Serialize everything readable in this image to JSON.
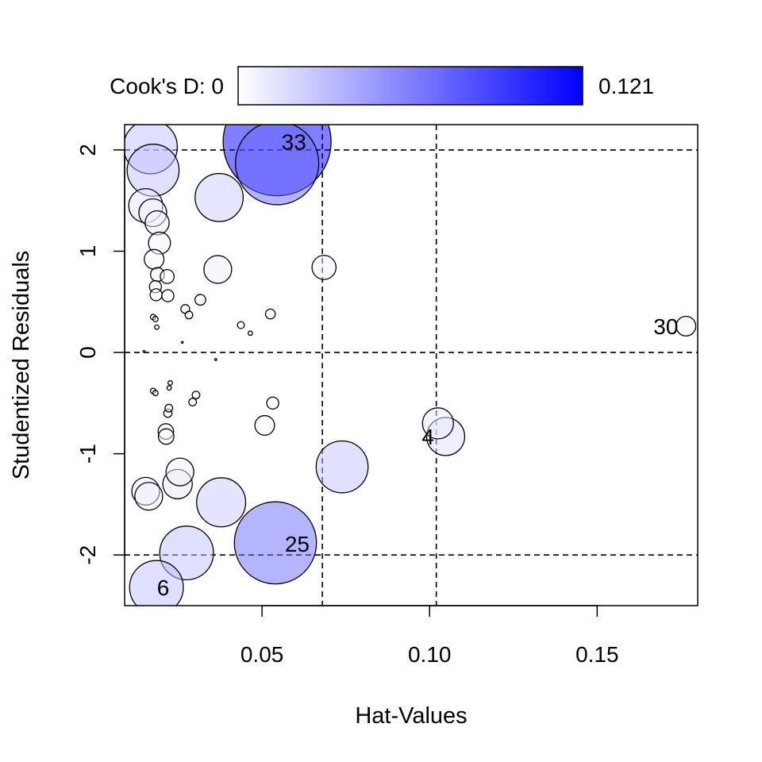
{
  "chart_data": {
    "type": "scatter",
    "subtype": "influence-bubble-plot",
    "xlabel": "Hat-Values",
    "ylabel": "Studentized Residuals",
    "xlim": [
      0.009,
      0.18
    ],
    "ylim": [
      -2.5,
      2.25
    ],
    "x_ticks": [
      0.05,
      0.1,
      0.15
    ],
    "x_tick_labels": [
      "0.05",
      "0.10",
      "0.15"
    ],
    "y_ticks": [
      -2,
      -1,
      0,
      1,
      2
    ],
    "y_tick_labels": [
      "-2",
      "-1",
      "0",
      "1",
      "2"
    ],
    "reference_lines": {
      "hat_values": [
        0.068,
        0.102
      ],
      "residuals": [
        -2,
        0,
        2
      ]
    },
    "legend": {
      "label": "Cook's D: 0",
      "max_label": "0.121",
      "min_value": 0,
      "max_value": 0.121,
      "color_low": "#ffffff",
      "color_high": "#0000ff",
      "position": "top"
    },
    "point_labels": [
      {
        "text": "33",
        "x": 0.0595,
        "y": 2.08
      },
      {
        "text": "30",
        "x": 0.1705,
        "y": 0.26
      },
      {
        "text": "4",
        "x": 0.0995,
        "y": -0.83
      },
      {
        "text": "25",
        "x": 0.0605,
        "y": -1.89
      },
      {
        "text": "6",
        "x": 0.0205,
        "y": -2.32
      }
    ],
    "points": [
      {
        "x": 0.0545,
        "y": 2.08,
        "d": 0.121
      },
      {
        "x": 0.0545,
        "y": 1.87,
        "d": 0.072
      },
      {
        "x": 0.0167,
        "y": 2.03,
        "d": 0.03
      },
      {
        "x": 0.0175,
        "y": 1.8,
        "d": 0.028
      },
      {
        "x": 0.0372,
        "y": 1.53,
        "d": 0.024
      },
      {
        "x": 0.0153,
        "y": 1.45,
        "d": 0.012
      },
      {
        "x": 0.0174,
        "y": 1.38,
        "d": 0.008
      },
      {
        "x": 0.0187,
        "y": 1.28,
        "d": 0.006
      },
      {
        "x": 0.0194,
        "y": 1.08,
        "d": 0.005
      },
      {
        "x": 0.0178,
        "y": 0.92,
        "d": 0.004
      },
      {
        "x": 0.0368,
        "y": 0.82,
        "d": 0.008
      },
      {
        "x": 0.0685,
        "y": 0.84,
        "d": 0.006
      },
      {
        "x": 0.0188,
        "y": 0.77,
        "d": 0.002
      },
      {
        "x": 0.0217,
        "y": 0.75,
        "d": 0.002
      },
      {
        "x": 0.0182,
        "y": 0.65,
        "d": 0.0015
      },
      {
        "x": 0.0184,
        "y": 0.57,
        "d": 0.0015
      },
      {
        "x": 0.0219,
        "y": 0.56,
        "d": 0.0015
      },
      {
        "x": 0.0316,
        "y": 0.52,
        "d": 0.0012
      },
      {
        "x": 0.0271,
        "y": 0.43,
        "d": 0.0008
      },
      {
        "x": 0.0282,
        "y": 0.37,
        "d": 0.0006
      },
      {
        "x": 0.0525,
        "y": 0.38,
        "d": 0.001
      },
      {
        "x": 0.0437,
        "y": 0.27,
        "d": 0.0005
      },
      {
        "x": 0.0465,
        "y": 0.19,
        "d": 0.0002
      },
      {
        "x": 0.0175,
        "y": 0.35,
        "d": 0.0003
      },
      {
        "x": 0.0182,
        "y": 0.33,
        "d": 0.0003
      },
      {
        "x": 0.0186,
        "y": 0.25,
        "d": 0.0002
      },
      {
        "x": 0.0262,
        "y": 0.1,
        "d": 1e-05
      },
      {
        "x": 0.1765,
        "y": 0.26,
        "d": 0.004
      },
      {
        "x": 0.0148,
        "y": 0.01,
        "d": 2e-06
      },
      {
        "x": 0.0362,
        "y": -0.07,
        "d": 1e-05
      },
      {
        "x": 0.0175,
        "y": -0.38,
        "d": 0.0003
      },
      {
        "x": 0.0182,
        "y": -0.4,
        "d": 0.0003
      },
      {
        "x": 0.0226,
        "y": -0.3,
        "d": 0.0002
      },
      {
        "x": 0.0223,
        "y": -0.35,
        "d": 0.0002
      },
      {
        "x": 0.0303,
        "y": -0.42,
        "d": 0.0006
      },
      {
        "x": 0.0293,
        "y": -0.49,
        "d": 0.0006
      },
      {
        "x": 0.0222,
        "y": -0.55,
        "d": 0.0006
      },
      {
        "x": 0.0219,
        "y": -0.6,
        "d": 0.0007
      },
      {
        "x": 0.0532,
        "y": -0.5,
        "d": 0.0015
      },
      {
        "x": 0.0508,
        "y": -0.72,
        "d": 0.004
      },
      {
        "x": 0.0213,
        "y": -0.78,
        "d": 0.0025
      },
      {
        "x": 0.0214,
        "y": -0.83,
        "d": 0.0025
      },
      {
        "x": 0.1025,
        "y": -0.7,
        "d": 0.01
      },
      {
        "x": 0.1048,
        "y": -0.83,
        "d": 0.015
      },
      {
        "x": 0.0739,
        "y": -1.13,
        "d": 0.028
      },
      {
        "x": 0.0255,
        "y": -1.18,
        "d": 0.008
      },
      {
        "x": 0.0248,
        "y": -1.3,
        "d": 0.009
      },
      {
        "x": 0.0153,
        "y": -1.37,
        "d": 0.008
      },
      {
        "x": 0.0162,
        "y": -1.42,
        "d": 0.008
      },
      {
        "x": 0.0378,
        "y": -1.48,
        "d": 0.025
      },
      {
        "x": 0.0275,
        "y": -1.98,
        "d": 0.03
      },
      {
        "x": 0.054,
        "y": -1.88,
        "d": 0.07
      },
      {
        "x": 0.0185,
        "y": -2.32,
        "d": 0.03
      }
    ]
  }
}
